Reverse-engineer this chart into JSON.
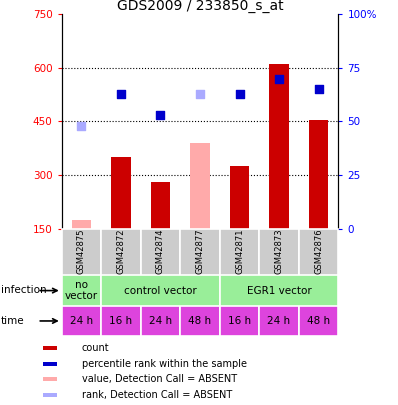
{
  "title": "GDS2009 / 233850_s_at",
  "samples": [
    "GSM42875",
    "GSM42872",
    "GSM42874",
    "GSM42877",
    "GSM42871",
    "GSM42873",
    "GSM42876"
  ],
  "bar_values": [
    175,
    350,
    280,
    390,
    325,
    610,
    455
  ],
  "bar_absent": [
    true,
    false,
    false,
    true,
    false,
    false,
    false
  ],
  "rank_values": [
    48,
    63,
    53,
    63,
    63,
    70,
    65
  ],
  "rank_absent": [
    true,
    false,
    false,
    true,
    false,
    false,
    false
  ],
  "ylim_left": [
    150,
    750
  ],
  "ylim_right": [
    0,
    100
  ],
  "yticks_left": [
    150,
    300,
    450,
    600,
    750
  ],
  "yticks_right": [
    0,
    25,
    50,
    75,
    100
  ],
  "ytick_labels_right": [
    "0",
    "25",
    "50",
    "75",
    "100%"
  ],
  "time_labels": [
    "24 h",
    "16 h",
    "24 h",
    "48 h",
    "16 h",
    "24 h",
    "48 h"
  ],
  "bar_color_present": "#cc0000",
  "bar_color_absent": "#ffaaaa",
  "rank_color_present": "#0000cc",
  "rank_color_absent": "#aaaaff",
  "bar_width": 0.5,
  "grid_lines": [
    300,
    450,
    600
  ],
  "infection_groups": [
    {
      "label": "no\nvector",
      "start": 0,
      "end": 1,
      "color": "#99ee99"
    },
    {
      "label": "control vector",
      "start": 1,
      "end": 4,
      "color": "#99ee99"
    },
    {
      "label": "EGR1 vector",
      "start": 4,
      "end": 7,
      "color": "#99ee99"
    }
  ],
  "time_color": "#dd44dd",
  "sample_box_color": "#cccccc",
  "legend_items": [
    {
      "label": "count",
      "color": "#cc0000"
    },
    {
      "label": "percentile rank within the sample",
      "color": "#0000cc"
    },
    {
      "label": "value, Detection Call = ABSENT",
      "color": "#ffaaaa"
    },
    {
      "label": "rank, Detection Call = ABSENT",
      "color": "#aaaaff"
    }
  ]
}
